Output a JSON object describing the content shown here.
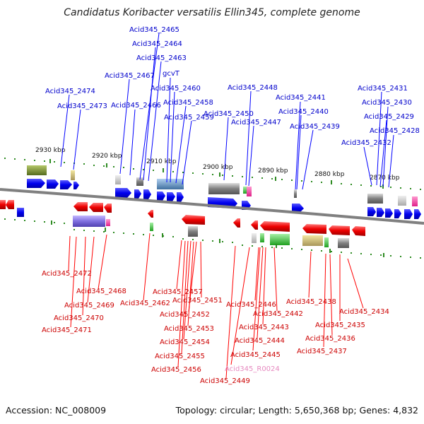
{
  "title": "Candidatus Koribacter versatilis Ellin345, complete genome",
  "footer": {
    "accession": "Accession: NC_008009",
    "summary": "Topology: circular; Length: 5,650,368 bp; Genes: 4,832"
  },
  "scale_labels": [
    "2930 kbp",
    "2920 kbp",
    "2910 kbp",
    "2900 kbp",
    "2890 kbp",
    "2880 kbp",
    "2870 kbp"
  ],
  "colors": {
    "forward_gene": "#0000ff",
    "reverse_gene": "#ff0000",
    "forward_label": "#0000cc",
    "reverse_label": "#cc0000",
    "rna_label": "#e68ac0",
    "backbone": "#808080",
    "ticks": "#2e8b22"
  },
  "forward_labels": [
    "Acid345_2465",
    "Acid345_2464",
    "Acid345_2463",
    "Acid345_2467",
    "gcvT",
    "Acid345_2474",
    "Acid345_2460",
    "Acid345_2473",
    "Acid345_2466",
    "Acid345_2458",
    "Acid345_2459",
    "Acid345_2448",
    "Acid345_2450",
    "Acid345_2447",
    "Acid345_2441",
    "Acid345_2440",
    "Acid345_2439",
    "Acid345_2431",
    "Acid345_2430",
    "Acid345_2429",
    "Acid345_2428",
    "Acid345_2432"
  ],
  "reverse_labels": [
    "Acid345_2472",
    "Acid345_2468",
    "Acid345_2469",
    "Acid345_2470",
    "Acid345_2471",
    "Acid345_2462",
    "Acid345_2457",
    "Acid345_2451",
    "Acid345_2452",
    "Acid345_2453",
    "Acid345_2454",
    "Acid345_2455",
    "Acid345_2456",
    "Acid345_2449",
    "Acid345_2446",
    "Acid345_2442",
    "Acid345_2443",
    "Acid345_2444",
    "Acid345_2445",
    "Acid345_R0024",
    "Acid345_2438",
    "Acid345_2434",
    "Acid345_2435",
    "Acid345_2436",
    "Acid345_2437"
  ]
}
